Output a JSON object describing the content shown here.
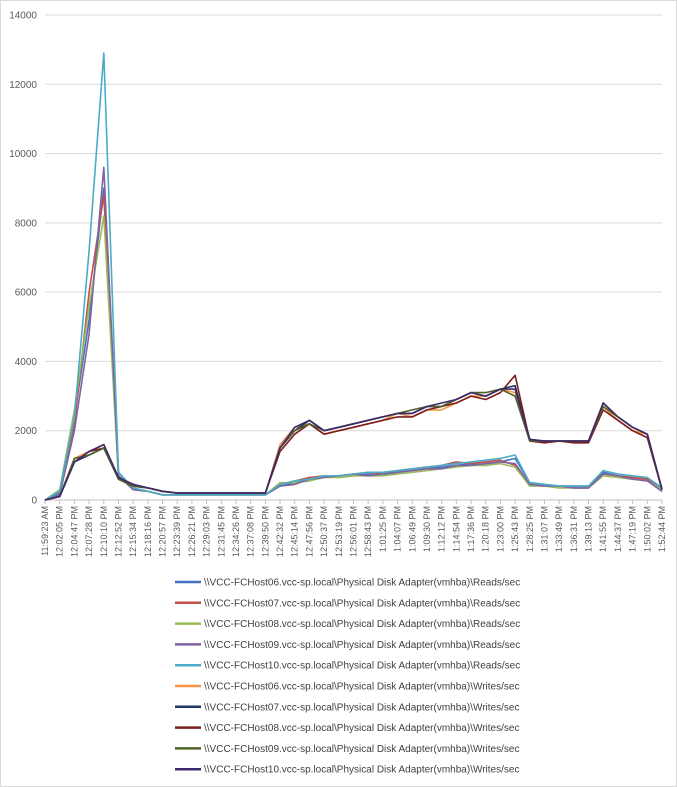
{
  "chart_data": {
    "type": "line",
    "title": "",
    "xlabel": "",
    "ylabel": "",
    "ylim": [
      0,
      14000
    ],
    "yticks": [
      0,
      2000,
      4000,
      6000,
      8000,
      10000,
      12000,
      14000
    ],
    "grid": true,
    "legend_position": "bottom",
    "xtick_labels": [
      "11:59:23 AM",
      "12:02:05 PM",
      "12:04:47 PM",
      "12:07:28 PM",
      "12:10:10 PM",
      "12:12:52 PM",
      "12:15:34 PM",
      "12:18:16 PM",
      "12:20:57 PM",
      "12:23:39 PM",
      "12:26:21 PM",
      "12:29:03 PM",
      "12:31:45 PM",
      "12:34:26 PM",
      "12:37:08 PM",
      "12:39:50 PM",
      "12:42:32 PM",
      "12:45:14 PM",
      "12:47:56 PM",
      "12:50:37 PM",
      "12:53:19 PM",
      "12:56:01 PM",
      "12:58:43 PM",
      "1:01:25 PM",
      "1:04:07 PM",
      "1:06:49 PM",
      "1:09:30 PM",
      "1:12:12 PM",
      "1:14:54 PM",
      "1:17:36 PM",
      "1:20:18 PM",
      "1:23:00 PM",
      "1:25:43 PM",
      "1:28:25 PM",
      "1:31:07 PM",
      "1:33:49 PM",
      "1:36:31 PM",
      "1:39:13 PM",
      "1:41:55 PM",
      "1:44:37 PM",
      "1:47:19 PM",
      "1:50:02 PM",
      "1:52:44 PM"
    ],
    "x_position": [
      0,
      1,
      2,
      3,
      4,
      5,
      6,
      7,
      8,
      9,
      10,
      11,
      12,
      13,
      14,
      15,
      16,
      17,
      18,
      19,
      20,
      21,
      22,
      23,
      24,
      25,
      26,
      27,
      28,
      29,
      30,
      31,
      32,
      33,
      34,
      35,
      36,
      37,
      38,
      39,
      40,
      41,
      42
    ],
    "series": [
      {
        "name": "\\\\VCC-FCHost06.vcc-sp.local\\Physical Disk Adapter(vmhba)\\Reads/sec",
        "color": "#4472c4",
        "values": [
          0,
          200,
          2400,
          5200,
          9000,
          800,
          300,
          250,
          150,
          150,
          150,
          150,
          150,
          150,
          150,
          150,
          400,
          500,
          600,
          700,
          650,
          700,
          750,
          700,
          800,
          850,
          900,
          950,
          1000,
          1050,
          1000,
          1100,
          1200,
          500,
          450,
          400,
          400,
          400,
          800,
          700,
          650,
          600,
          300
        ]
      },
      {
        "name": "\\\\VCC-FCHost07.vcc-sp.local\\Physical Disk Adapter(vmhba)\\Reads/sec",
        "color": "#c0504d",
        "values": [
          0,
          150,
          2200,
          6000,
          8800,
          700,
          300,
          250,
          150,
          150,
          150,
          150,
          150,
          150,
          150,
          150,
          450,
          550,
          650,
          700,
          700,
          750,
          800,
          750,
          850,
          900,
          950,
          1000,
          1100,
          1050,
          1100,
          1150,
          1000,
          450,
          400,
          400,
          350,
          350,
          750,
          700,
          650,
          600,
          250
        ]
      },
      {
        "name": "\\\\VCC-FCHost08.vcc-sp.local\\Physical Disk Adapter(vmhba)\\Reads/sec",
        "color": "#9bbb59",
        "values": [
          0,
          300,
          2600,
          5600,
          8200,
          650,
          350,
          250,
          150,
          150,
          150,
          150,
          150,
          150,
          150,
          150,
          500,
          500,
          550,
          650,
          650,
          700,
          700,
          700,
          750,
          800,
          850,
          900,
          950,
          1000,
          1000,
          1050,
          950,
          400,
          400,
          350,
          350,
          350,
          700,
          650,
          600,
          550,
          300
        ]
      },
      {
        "name": "\\\\VCC-FCHost09.vcc-sp.local\\Physical Disk Adapter(vmhba)\\Reads/sec",
        "color": "#8064a2",
        "values": [
          0,
          150,
          2000,
          4800,
          9600,
          700,
          300,
          250,
          150,
          150,
          150,
          150,
          150,
          150,
          150,
          150,
          400,
          450,
          600,
          650,
          700,
          750,
          700,
          750,
          800,
          850,
          900,
          900,
          1000,
          1000,
          1050,
          1100,
          1050,
          450,
          400,
          400,
          350,
          350,
          750,
          700,
          600,
          550,
          250
        ]
      },
      {
        "name": "\\\\VCC-FCHost10.vcc-sp.local\\Physical Disk Adapter(vmhba)\\Reads/sec",
        "color": "#4bacc6",
        "values": [
          0,
          250,
          2400,
          7200,
          12900,
          800,
          350,
          250,
          150,
          150,
          150,
          150,
          150,
          150,
          150,
          150,
          450,
          550,
          600,
          700,
          700,
          750,
          800,
          800,
          850,
          900,
          950,
          1000,
          1050,
          1100,
          1150,
          1200,
          1300,
          500,
          450,
          400,
          400,
          400,
          850,
          750,
          700,
          650,
          350
        ]
      },
      {
        "name": "\\\\VCC-FCHost06.vcc-sp.local\\Physical Disk Adapter(vmhba)\\Writes/sec",
        "color": "#f79646",
        "values": [
          0,
          100,
          1200,
          1400,
          1600,
          600,
          400,
          350,
          250,
          200,
          200,
          200,
          200,
          200,
          200,
          200,
          1600,
          2100,
          2200,
          1900,
          2000,
          2100,
          2200,
          2300,
          2500,
          2400,
          2600,
          2600,
          2800,
          3000,
          3000,
          3200,
          3100,
          1700,
          1700,
          1700,
          1700,
          1700,
          2700,
          2300,
          2000,
          1900,
          300
        ]
      },
      {
        "name": "\\\\VCC-FCHost07.vcc-sp.local\\Physical Disk Adapter(vmhba)\\Writes/sec",
        "color": "#1f3864",
        "values": [
          0,
          100,
          1100,
          1300,
          1500,
          600,
          400,
          350,
          250,
          200,
          200,
          200,
          200,
          200,
          200,
          200,
          1500,
          2000,
          2300,
          2000,
          2100,
          2200,
          2300,
          2400,
          2500,
          2500,
          2700,
          2700,
          2900,
          3100,
          3000,
          3200,
          3300,
          1750,
          1700,
          1700,
          1700,
          1700,
          2800,
          2400,
          2100,
          1900,
          300
        ]
      },
      {
        "name": "\\\\VCC-FCHost08.vcc-sp.local\\Physical Disk Adapter(vmhba)\\Writes/sec",
        "color": "#7f1d1d",
        "values": [
          0,
          100,
          1100,
          1400,
          1500,
          650,
          450,
          350,
          250,
          200,
          200,
          200,
          200,
          200,
          200,
          200,
          1400,
          1900,
          2200,
          1900,
          2000,
          2100,
          2200,
          2300,
          2400,
          2400,
          2600,
          2700,
          2800,
          3000,
          2900,
          3100,
          3600,
          1700,
          1650,
          1700,
          1650,
          1650,
          2600,
          2300,
          2000,
          1800,
          300
        ]
      },
      {
        "name": "\\\\VCC-FCHost09.vcc-sp.local\\Physical Disk Adapter(vmhba)\\Writes/sec",
        "color": "#4f6228",
        "values": [
          0,
          100,
          1200,
          1300,
          1500,
          600,
          400,
          350,
          250,
          200,
          200,
          200,
          200,
          200,
          200,
          200,
          1500,
          2000,
          2200,
          2000,
          2100,
          2200,
          2300,
          2400,
          2500,
          2600,
          2700,
          2700,
          2900,
          3100,
          3100,
          3200,
          3000,
          1700,
          1700,
          1700,
          1700,
          1700,
          2700,
          2400,
          2100,
          1900,
          300
        ]
      },
      {
        "name": "\\\\VCC-FCHost10.vcc-sp.local\\Physical Disk Adapter(vmhba)\\Writes/sec",
        "color": "#3f2a6b",
        "values": [
          0,
          100,
          1100,
          1400,
          1600,
          650,
          450,
          350,
          250,
          200,
          200,
          200,
          200,
          200,
          200,
          200,
          1500,
          2100,
          2300,
          2000,
          2100,
          2200,
          2300,
          2400,
          2500,
          2500,
          2700,
          2800,
          2900,
          3100,
          3000,
          3200,
          3200,
          1750,
          1700,
          1700,
          1700,
          1700,
          2800,
          2400,
          2100,
          1900,
          300
        ]
      }
    ]
  }
}
